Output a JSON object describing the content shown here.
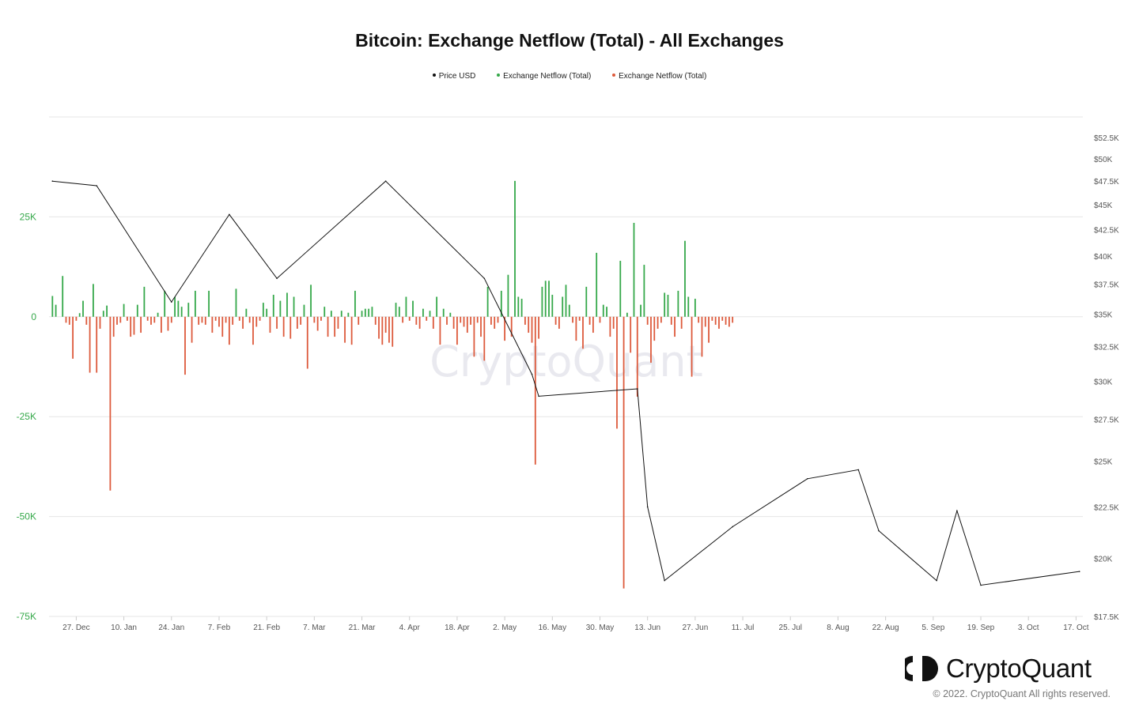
{
  "title": "Bitcoin: Exchange Netflow (Total) - All Exchanges",
  "legend": [
    {
      "label": "Price USD",
      "color": "#111111"
    },
    {
      "label": "Exchange Netflow (Total)",
      "color": "#35a84a"
    },
    {
      "label": "Exchange Netflow (Total)",
      "color": "#dd5a3c"
    }
  ],
  "watermark": "CryptoQuant",
  "logo_text": "CryptoQuant",
  "copyright": "© 2022. CryptoQuant All rights reserved.",
  "chart_data": {
    "type": "bar",
    "title": "Bitcoin: Exchange Netflow (Total) - All Exchanges",
    "x_range": [
      "2021-12-19",
      "2022-10-19"
    ],
    "x_ticks": [
      "27. Dec",
      "10. Jan",
      "24. Jan",
      "7. Feb",
      "21. Feb",
      "7. Mar",
      "21. Mar",
      "4. Apr",
      "18. Apr",
      "2. May",
      "16. May",
      "30. May",
      "13. Jun",
      "27. Jun",
      "11. Jul",
      "25. Jul",
      "8. Aug",
      "22. Aug",
      "5. Sep",
      "19. Sep",
      "3. Oct",
      "17. Oct"
    ],
    "y_left": {
      "ticks": [
        "25K",
        "0",
        "-25K",
        "-50K",
        "-75K"
      ],
      "ylim": [
        -75000,
        50000
      ],
      "color": "#35a84a"
    },
    "y_right": {
      "ticks": [
        "$52.5K",
        "$50K",
        "$47.5K",
        "$45K",
        "$42.5K",
        "$40K",
        "$37.5K",
        "$35K",
        "$32.5K",
        "$30K",
        "$27.5K",
        "$25K",
        "$22.5K",
        "$20K",
        "$17.5K"
      ],
      "ylim": [
        17500,
        52500
      ],
      "scale": "log"
    },
    "grid": "horizontal",
    "netflow_positive_color": "#35a84a",
    "netflow_negative_color": "#dd5a3c",
    "netflow_series": [
      {
        "date": "2021-12-20",
        "value": 5200
      },
      {
        "date": "2021-12-21",
        "value": 3000
      },
      {
        "date": "2021-12-23",
        "value": 10200
      },
      {
        "date": "2021-12-24",
        "value": -1500
      },
      {
        "date": "2021-12-25",
        "value": -2000
      },
      {
        "date": "2021-12-26",
        "value": -10500
      },
      {
        "date": "2021-12-27",
        "value": -1000
      },
      {
        "date": "2021-12-28",
        "value": 900
      },
      {
        "date": "2021-12-29",
        "value": 4000
      },
      {
        "date": "2021-12-30",
        "value": -2000
      },
      {
        "date": "2021-12-31",
        "value": -14000
      },
      {
        "date": "2022-01-01",
        "value": 8200
      },
      {
        "date": "2022-01-02",
        "value": -14000
      },
      {
        "date": "2022-01-03",
        "value": -3000
      },
      {
        "date": "2022-01-04",
        "value": 1500
      },
      {
        "date": "2022-01-05",
        "value": 2800
      },
      {
        "date": "2022-01-06",
        "value": -43500
      },
      {
        "date": "2022-01-07",
        "value": -5000
      },
      {
        "date": "2022-01-08",
        "value": -2000
      },
      {
        "date": "2022-01-09",
        "value": -1500
      },
      {
        "date": "2022-01-10",
        "value": 3200
      },
      {
        "date": "2022-01-11",
        "value": -1000
      },
      {
        "date": "2022-01-12",
        "value": -5000
      },
      {
        "date": "2022-01-13",
        "value": -4500
      },
      {
        "date": "2022-01-14",
        "value": 3000
      },
      {
        "date": "2022-01-15",
        "value": -4000
      },
      {
        "date": "2022-01-16",
        "value": 7500
      },
      {
        "date": "2022-01-17",
        "value": -1000
      },
      {
        "date": "2022-01-18",
        "value": -2000
      },
      {
        "date": "2022-01-19",
        "value": -1500
      },
      {
        "date": "2022-01-20",
        "value": 1000
      },
      {
        "date": "2022-01-21",
        "value": -4000
      },
      {
        "date": "2022-01-22",
        "value": 6500
      },
      {
        "date": "2022-01-23",
        "value": -3500
      },
      {
        "date": "2022-01-24",
        "value": -1500
      },
      {
        "date": "2022-01-25",
        "value": 5000
      },
      {
        "date": "2022-01-26",
        "value": 4000
      },
      {
        "date": "2022-01-27",
        "value": 2500
      },
      {
        "date": "2022-01-28",
        "value": -14500
      },
      {
        "date": "2022-01-29",
        "value": 3500
      },
      {
        "date": "2022-01-30",
        "value": -6500
      },
      {
        "date": "2022-01-31",
        "value": 6500
      },
      {
        "date": "2022-02-01",
        "value": -2000
      },
      {
        "date": "2022-02-02",
        "value": -1500
      },
      {
        "date": "2022-02-03",
        "value": -2000
      },
      {
        "date": "2022-02-04",
        "value": 6500
      },
      {
        "date": "2022-02-05",
        "value": -4000
      },
      {
        "date": "2022-02-06",
        "value": -1000
      },
      {
        "date": "2022-02-07",
        "value": -2500
      },
      {
        "date": "2022-02-08",
        "value": -5000
      },
      {
        "date": "2022-02-09",
        "value": -1500
      },
      {
        "date": "2022-02-10",
        "value": -7000
      },
      {
        "date": "2022-02-11",
        "value": -2000
      },
      {
        "date": "2022-02-12",
        "value": 7000
      },
      {
        "date": "2022-02-13",
        "value": -1000
      },
      {
        "date": "2022-02-14",
        "value": -3000
      },
      {
        "date": "2022-02-15",
        "value": 2000
      },
      {
        "date": "2022-02-16",
        "value": -1500
      },
      {
        "date": "2022-02-17",
        "value": -7000
      },
      {
        "date": "2022-02-18",
        "value": -2500
      },
      {
        "date": "2022-02-19",
        "value": -1000
      },
      {
        "date": "2022-02-20",
        "value": 3500
      },
      {
        "date": "2022-02-21",
        "value": 2000
      },
      {
        "date": "2022-02-22",
        "value": -4000
      },
      {
        "date": "2022-02-23",
        "value": 5500
      },
      {
        "date": "2022-02-24",
        "value": -3000
      },
      {
        "date": "2022-02-25",
        "value": 4000
      },
      {
        "date": "2022-02-26",
        "value": -5000
      },
      {
        "date": "2022-02-27",
        "value": 6000
      },
      {
        "date": "2022-02-28",
        "value": -5500
      },
      {
        "date": "2022-03-01",
        "value": 5000
      },
      {
        "date": "2022-03-02",
        "value": -3000
      },
      {
        "date": "2022-03-03",
        "value": -2000
      },
      {
        "date": "2022-03-04",
        "value": 3000
      },
      {
        "date": "2022-03-05",
        "value": -13000
      },
      {
        "date": "2022-03-06",
        "value": 8000
      },
      {
        "date": "2022-03-07",
        "value": -1500
      },
      {
        "date": "2022-03-08",
        "value": -3500
      },
      {
        "date": "2022-03-09",
        "value": -1000
      },
      {
        "date": "2022-03-10",
        "value": 2500
      },
      {
        "date": "2022-03-11",
        "value": -5000
      },
      {
        "date": "2022-03-12",
        "value": 1500
      },
      {
        "date": "2022-03-13",
        "value": -5000
      },
      {
        "date": "2022-03-14",
        "value": -3000
      },
      {
        "date": "2022-03-15",
        "value": 1500
      },
      {
        "date": "2022-03-16",
        "value": -6500
      },
      {
        "date": "2022-03-17",
        "value": 1000
      },
      {
        "date": "2022-03-18",
        "value": -7000
      },
      {
        "date": "2022-03-19",
        "value": 6500
      },
      {
        "date": "2022-03-20",
        "value": -2000
      },
      {
        "date": "2022-03-21",
        "value": 1500
      },
      {
        "date": "2022-03-22",
        "value": 2000
      },
      {
        "date": "2022-03-23",
        "value": 2000
      },
      {
        "date": "2022-03-24",
        "value": 2500
      },
      {
        "date": "2022-03-25",
        "value": -2000
      },
      {
        "date": "2022-03-26",
        "value": -5500
      },
      {
        "date": "2022-03-27",
        "value": -7000
      },
      {
        "date": "2022-03-28",
        "value": -4000
      },
      {
        "date": "2022-03-29",
        "value": -6500
      },
      {
        "date": "2022-03-30",
        "value": -7500
      },
      {
        "date": "2022-03-31",
        "value": 3500
      },
      {
        "date": "2022-04-01",
        "value": 2500
      },
      {
        "date": "2022-04-02",
        "value": -1500
      },
      {
        "date": "2022-04-03",
        "value": 5000
      },
      {
        "date": "2022-04-04",
        "value": -1000
      },
      {
        "date": "2022-04-05",
        "value": 4000
      },
      {
        "date": "2022-04-06",
        "value": -2000
      },
      {
        "date": "2022-04-07",
        "value": -3000
      },
      {
        "date": "2022-04-08",
        "value": 2000
      },
      {
        "date": "2022-04-09",
        "value": -1000
      },
      {
        "date": "2022-04-10",
        "value": 1500
      },
      {
        "date": "2022-04-11",
        "value": -3000
      },
      {
        "date": "2022-04-12",
        "value": 5000
      },
      {
        "date": "2022-04-13",
        "value": -7000
      },
      {
        "date": "2022-04-14",
        "value": 2000
      },
      {
        "date": "2022-04-15",
        "value": -2000
      },
      {
        "date": "2022-04-16",
        "value": 1000
      },
      {
        "date": "2022-04-17",
        "value": -3000
      },
      {
        "date": "2022-04-18",
        "value": -7000
      },
      {
        "date": "2022-04-19",
        "value": -1500
      },
      {
        "date": "2022-04-20",
        "value": -2500
      },
      {
        "date": "2022-04-21",
        "value": -4000
      },
      {
        "date": "2022-04-22",
        "value": -2000
      },
      {
        "date": "2022-04-23",
        "value": -10000
      },
      {
        "date": "2022-04-24",
        "value": -1500
      },
      {
        "date": "2022-04-25",
        "value": -5000
      },
      {
        "date": "2022-04-26",
        "value": -11000
      },
      {
        "date": "2022-04-27",
        "value": 7500
      },
      {
        "date": "2022-04-28",
        "value": -2000
      },
      {
        "date": "2022-04-29",
        "value": -3000
      },
      {
        "date": "2022-04-30",
        "value": -1500
      },
      {
        "date": "2022-05-01",
        "value": 6500
      },
      {
        "date": "2022-05-02",
        "value": -6000
      },
      {
        "date": "2022-05-03",
        "value": 10500
      },
      {
        "date": "2022-05-04",
        "value": -5000
      },
      {
        "date": "2022-05-05",
        "value": 34000
      },
      {
        "date": "2022-05-06",
        "value": 5000
      },
      {
        "date": "2022-05-07",
        "value": 4500
      },
      {
        "date": "2022-05-08",
        "value": -2000
      },
      {
        "date": "2022-05-09",
        "value": -4000
      },
      {
        "date": "2022-05-10",
        "value": -6500
      },
      {
        "date": "2022-05-11",
        "value": -37000
      },
      {
        "date": "2022-05-12",
        "value": -5500
      },
      {
        "date": "2022-05-13",
        "value": 7500
      },
      {
        "date": "2022-05-14",
        "value": 9000
      },
      {
        "date": "2022-05-15",
        "value": 9000
      },
      {
        "date": "2022-05-16",
        "value": 5500
      },
      {
        "date": "2022-05-17",
        "value": -2000
      },
      {
        "date": "2022-05-18",
        "value": -3000
      },
      {
        "date": "2022-05-19",
        "value": 5000
      },
      {
        "date": "2022-05-20",
        "value": 8000
      },
      {
        "date": "2022-05-21",
        "value": 3000
      },
      {
        "date": "2022-05-22",
        "value": -1500
      },
      {
        "date": "2022-05-23",
        "value": -6000
      },
      {
        "date": "2022-05-24",
        "value": -1000
      },
      {
        "date": "2022-05-25",
        "value": -8000
      },
      {
        "date": "2022-05-26",
        "value": 7500
      },
      {
        "date": "2022-05-27",
        "value": -2000
      },
      {
        "date": "2022-05-28",
        "value": -4000
      },
      {
        "date": "2022-05-29",
        "value": 16000
      },
      {
        "date": "2022-05-30",
        "value": -1500
      },
      {
        "date": "2022-05-31",
        "value": 3000
      },
      {
        "date": "2022-06-01",
        "value": 2500
      },
      {
        "date": "2022-06-02",
        "value": -5000
      },
      {
        "date": "2022-06-03",
        "value": -3000
      },
      {
        "date": "2022-06-04",
        "value": -28000
      },
      {
        "date": "2022-06-05",
        "value": 14000
      },
      {
        "date": "2022-06-06",
        "value": -68000
      },
      {
        "date": "2022-06-07",
        "value": 1000
      },
      {
        "date": "2022-06-08",
        "value": -9000
      },
      {
        "date": "2022-06-09",
        "value": 23500
      },
      {
        "date": "2022-06-10",
        "value": -20000
      },
      {
        "date": "2022-06-11",
        "value": 3000
      },
      {
        "date": "2022-06-12",
        "value": 13000
      },
      {
        "date": "2022-06-13",
        "value": -2000
      },
      {
        "date": "2022-06-14",
        "value": -11500
      },
      {
        "date": "2022-06-15",
        "value": -6000
      },
      {
        "date": "2022-06-16",
        "value": -3000
      },
      {
        "date": "2022-06-17",
        "value": -1500
      },
      {
        "date": "2022-06-18",
        "value": 6000
      },
      {
        "date": "2022-06-19",
        "value": 5500
      },
      {
        "date": "2022-06-20",
        "value": -2000
      },
      {
        "date": "2022-06-21",
        "value": -5000
      },
      {
        "date": "2022-06-22",
        "value": 6500
      },
      {
        "date": "2022-06-23",
        "value": -3000
      },
      {
        "date": "2022-06-24",
        "value": 19000
      },
      {
        "date": "2022-06-25",
        "value": 5000
      },
      {
        "date": "2022-06-26",
        "value": -15000
      },
      {
        "date": "2022-06-27",
        "value": 4500
      },
      {
        "date": "2022-06-28",
        "value": -1500
      },
      {
        "date": "2022-06-29",
        "value": -10000
      },
      {
        "date": "2022-06-30",
        "value": -2500
      },
      {
        "date": "2022-07-01",
        "value": -6500
      },
      {
        "date": "2022-07-02",
        "value": -1000
      },
      {
        "date": "2022-07-03",
        "value": -2000
      },
      {
        "date": "2022-07-04",
        "value": -3000
      },
      {
        "date": "2022-07-05",
        "value": -1000
      },
      {
        "date": "2022-07-06",
        "value": -2000
      },
      {
        "date": "2022-07-07",
        "value": -2500
      },
      {
        "date": "2022-07-08",
        "value": -1500
      }
    ],
    "price_series": [
      {
        "date": "2021-12-20",
        "value": 47500
      },
      {
        "date": "2022-01-02",
        "value": 47000
      },
      {
        "date": "2022-01-24",
        "value": 36000
      },
      {
        "date": "2022-02-10",
        "value": 44000
      },
      {
        "date": "2022-02-24",
        "value": 38000
      },
      {
        "date": "2022-03-28",
        "value": 47500
      },
      {
        "date": "2022-04-26",
        "value": 38000
      },
      {
        "date": "2022-05-10",
        "value": 30500
      },
      {
        "date": "2022-05-12",
        "value": 29000
      },
      {
        "date": "2022-06-10",
        "value": 29500
      },
      {
        "date": "2022-06-13",
        "value": 22500
      },
      {
        "date": "2022-06-18",
        "value": 19000
      },
      {
        "date": "2022-07-08",
        "value": 21500
      },
      {
        "date": "2022-07-30",
        "value": 24000
      },
      {
        "date": "2022-08-14",
        "value": 24500
      },
      {
        "date": "2022-08-20",
        "value": 21300
      },
      {
        "date": "2022-09-06",
        "value": 19000
      },
      {
        "date": "2022-09-12",
        "value": 22300
      },
      {
        "date": "2022-09-19",
        "value": 18800
      },
      {
        "date": "2022-10-18",
        "value": 19400
      }
    ]
  }
}
